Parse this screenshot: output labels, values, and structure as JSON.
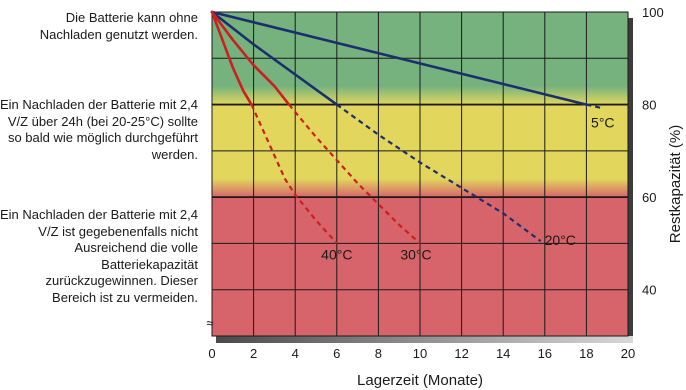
{
  "chart_data": {
    "type": "line",
    "title": "",
    "xlabel": "Lagerzeit (Monate)",
    "ylabel": "Restkapazität (%)",
    "xlim": [
      0,
      20
    ],
    "ylim": [
      30,
      100
    ],
    "x_ticks": [
      "0",
      "2",
      "4",
      "6",
      "8",
      "10",
      "12",
      "14",
      "16",
      "18",
      "20"
    ],
    "y_ticks": [
      "40",
      "60",
      "80",
      "100"
    ],
    "grid": true,
    "break_mark": "≈",
    "zones": [
      {
        "name": "green",
        "from": 80,
        "to": 100,
        "color": "#76b27e"
      },
      {
        "name": "yellow",
        "from": 60,
        "to": 80,
        "color": "#e2d75c"
      },
      {
        "name": "red",
        "from": 30,
        "to": 60,
        "color": "#d7646a"
      }
    ],
    "series": [
      {
        "name": "5°C",
        "color": "#1b2f6e",
        "solid": [
          [
            0,
            100
          ],
          [
            18,
            80
          ]
        ],
        "dashed": [
          [
            18,
            80
          ],
          [
            18.8,
            79.2
          ]
        ]
      },
      {
        "name": "20°C",
        "color": "#1b2f6e",
        "solid": [
          [
            0,
            100
          ],
          [
            2,
            93
          ],
          [
            4,
            86.5
          ],
          [
            6,
            80
          ]
        ],
        "dashed": [
          [
            6,
            80
          ],
          [
            8,
            73.5
          ],
          [
            10,
            67.5
          ],
          [
            12,
            62
          ],
          [
            14,
            56.5
          ],
          [
            15.8,
            50.5
          ]
        ]
      },
      {
        "name": "30°C",
        "color": "#cc1f1f",
        "solid": [
          [
            0,
            100
          ],
          [
            1,
            94
          ],
          [
            2,
            88.5
          ],
          [
            3,
            84
          ],
          [
            3.7,
            80
          ]
        ],
        "dashed": [
          [
            3.7,
            80
          ],
          [
            5,
            73
          ],
          [
            6,
            68
          ],
          [
            7,
            63
          ],
          [
            8,
            58.5
          ],
          [
            9,
            54
          ],
          [
            10,
            50
          ]
        ]
      },
      {
        "name": "40°C",
        "color": "#cc1f1f",
        "solid": [
          [
            0,
            100
          ],
          [
            0.5,
            94
          ],
          [
            1,
            88
          ],
          [
            1.5,
            83
          ],
          [
            1.9,
            80
          ]
        ],
        "dashed": [
          [
            1.9,
            80
          ],
          [
            2.5,
            74
          ],
          [
            3,
            69
          ],
          [
            3.5,
            64
          ],
          [
            4,
            60.5
          ],
          [
            5,
            55
          ],
          [
            6,
            50
          ]
        ]
      }
    ]
  },
  "zone_notes": {
    "green": "Die Batterie kann ohne Nachladen genutzt werden.",
    "yellow": "Ein Nachladen der Batterie mit 2,4 V/Z über 24h (bei 20-25°C) sollte so bald wie möglich durchgeführt werden.",
    "red": "Ein Nachladen der Batterie mit 2,4 V/Z ist gegebenenfalls nicht Ausreichend die volle Batteriekapazität zurückzugewinnen. Dieser Bereich ist zu vermeiden."
  }
}
